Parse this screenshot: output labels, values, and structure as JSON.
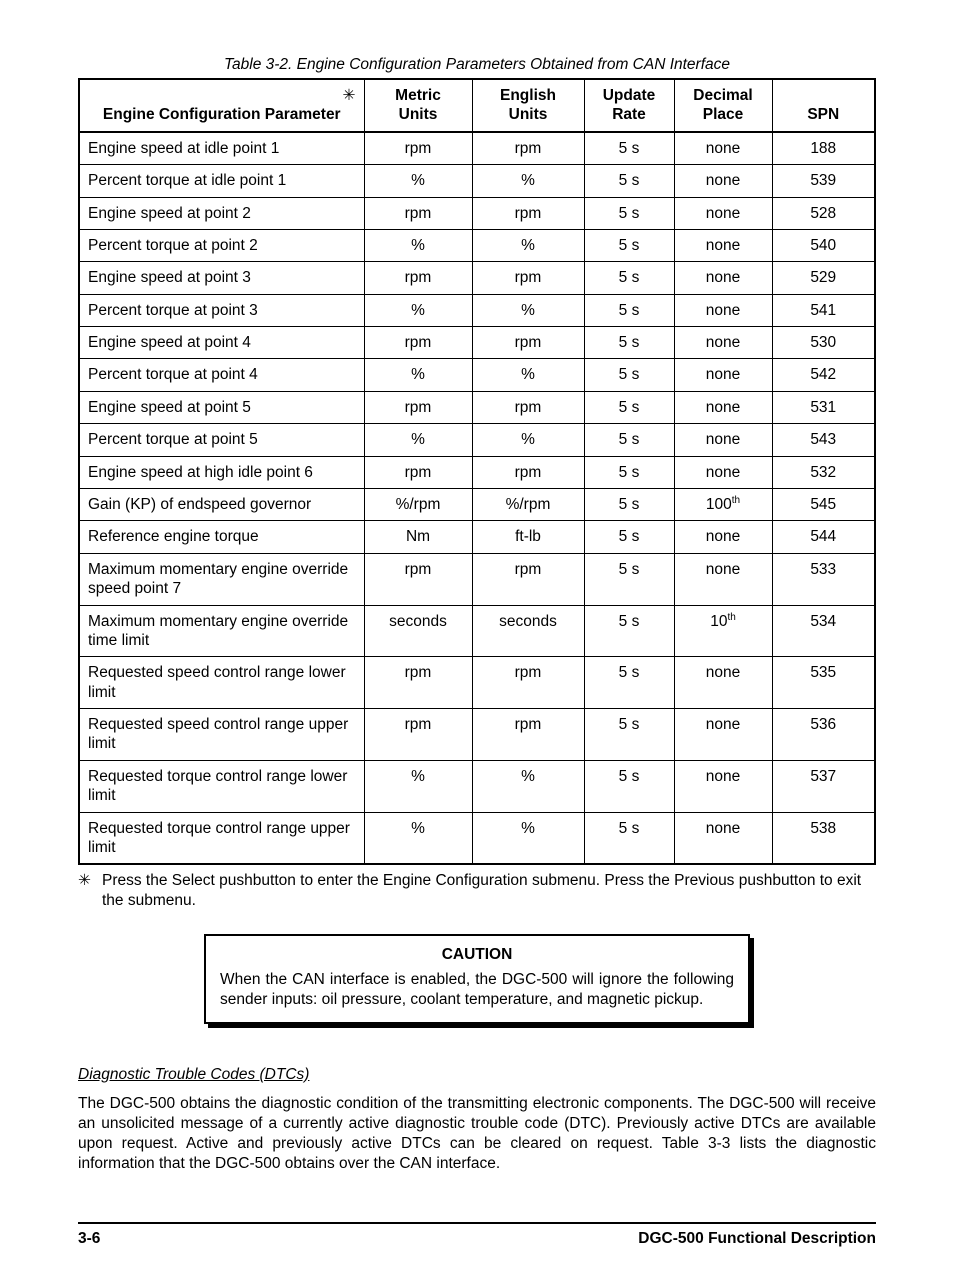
{
  "table": {
    "title": "Table 3-2. Engine Configuration Parameters Obtained from CAN Interface",
    "star": "✳",
    "columns": {
      "param": "Engine Configuration Parameter",
      "metric_l1": "Metric",
      "metric_l2": "Units",
      "english_l1": "English",
      "english_l2": "Units",
      "update_l1": "Update",
      "update_l2": "Rate",
      "decimal_l1": "Decimal",
      "decimal_l2": "Place",
      "spn": "SPN"
    },
    "rows": [
      {
        "param": "Engine speed at idle point 1",
        "metric": "rpm",
        "english": "rpm",
        "update": "5 s",
        "decimal": "none",
        "dec_sup": "",
        "spn": "188"
      },
      {
        "param": "Percent torque at idle point 1",
        "metric": "%",
        "english": "%",
        "update": "5 s",
        "decimal": "none",
        "dec_sup": "",
        "spn": "539"
      },
      {
        "param": "Engine speed at point 2",
        "metric": "rpm",
        "english": "rpm",
        "update": "5 s",
        "decimal": "none",
        "dec_sup": "",
        "spn": "528"
      },
      {
        "param": "Percent torque at point 2",
        "metric": "%",
        "english": "%",
        "update": "5 s",
        "decimal": "none",
        "dec_sup": "",
        "spn": "540"
      },
      {
        "param": "Engine speed at point 3",
        "metric": "rpm",
        "english": "rpm",
        "update": "5 s",
        "decimal": "none",
        "dec_sup": "",
        "spn": "529"
      },
      {
        "param": "Percent torque at point 3",
        "metric": "%",
        "english": "%",
        "update": "5 s",
        "decimal": "none",
        "dec_sup": "",
        "spn": "541"
      },
      {
        "param": "Engine speed at point 4",
        "metric": "rpm",
        "english": "rpm",
        "update": "5 s",
        "decimal": "none",
        "dec_sup": "",
        "spn": "530"
      },
      {
        "param": "Percent torque at point 4",
        "metric": "%",
        "english": "%",
        "update": "5 s",
        "decimal": "none",
        "dec_sup": "",
        "spn": "542"
      },
      {
        "param": "Engine speed at point 5",
        "metric": "rpm",
        "english": "rpm",
        "update": "5 s",
        "decimal": "none",
        "dec_sup": "",
        "spn": "531"
      },
      {
        "param": "Percent torque at point 5",
        "metric": "%",
        "english": "%",
        "update": "5 s",
        "decimal": "none",
        "dec_sup": "",
        "spn": "543"
      },
      {
        "param": "Engine speed at high idle point 6",
        "metric": "rpm",
        "english": "rpm",
        "update": "5 s",
        "decimal": "none",
        "dec_sup": "",
        "spn": "532"
      },
      {
        "param": "Gain (KP) of endspeed governor",
        "metric": "%/rpm",
        "english": "%/rpm",
        "update": "5 s",
        "decimal": "100",
        "dec_sup": "th",
        "spn": "545"
      },
      {
        "param": "Reference engine torque",
        "metric": "Nm",
        "english": "ft-lb",
        "update": "5 s",
        "decimal": "none",
        "dec_sup": "",
        "spn": "544"
      },
      {
        "param": "Maximum momentary engine override speed point 7",
        "metric": "rpm",
        "english": "rpm",
        "update": "5 s",
        "decimal": "none",
        "dec_sup": "",
        "spn": "533"
      },
      {
        "param": "Maximum momentary engine override time limit",
        "metric": "seconds",
        "english": "seconds",
        "update": "5 s",
        "decimal": "10",
        "dec_sup": "th",
        "spn": "534"
      },
      {
        "param": "Requested speed control range lower limit",
        "metric": "rpm",
        "english": "rpm",
        "update": "5 s",
        "decimal": "none",
        "dec_sup": "",
        "spn": "535"
      },
      {
        "param": "Requested speed control range upper limit",
        "metric": "rpm",
        "english": "rpm",
        "update": "5 s",
        "decimal": "none",
        "dec_sup": "",
        "spn": "536"
      },
      {
        "param": "Requested torque control range lower limit",
        "metric": "%",
        "english": "%",
        "update": "5 s",
        "decimal": "none",
        "dec_sup": "",
        "spn": "537"
      },
      {
        "param": "Requested torque control range upper limit",
        "metric": "%",
        "english": "%",
        "update": "5 s",
        "decimal": "none",
        "dec_sup": "",
        "spn": "538"
      }
    ],
    "col_widths": [
      "285px",
      "108px",
      "112px",
      "90px",
      "98px",
      "auto"
    ]
  },
  "footnote": {
    "mark": "✳",
    "text": "Press the Select pushbutton to enter the Engine Configuration submenu. Press the Previous pushbutton to exit the submenu."
  },
  "caution": {
    "title": "CAUTION",
    "body": "When the CAN interface is enabled, the DGC-500 will ignore the following sender inputs: oil pressure, coolant temperature, and magnetic pickup."
  },
  "section": {
    "heading": "Diagnostic Trouble Codes (DTCs)",
    "body": "The DGC-500 obtains the diagnostic condition of the transmitting electronic components. The DGC-500 will receive an unsolicited message of a currently active diagnostic trouble code (DTC). Previously active DTCs are available upon request. Active and previously active DTCs can be cleared on request. Table 3-3 lists the diagnostic information that the DGC-500 obtains over the CAN interface."
  },
  "footer": {
    "page": "3-6",
    "title": "DGC-500 Functional Description"
  }
}
